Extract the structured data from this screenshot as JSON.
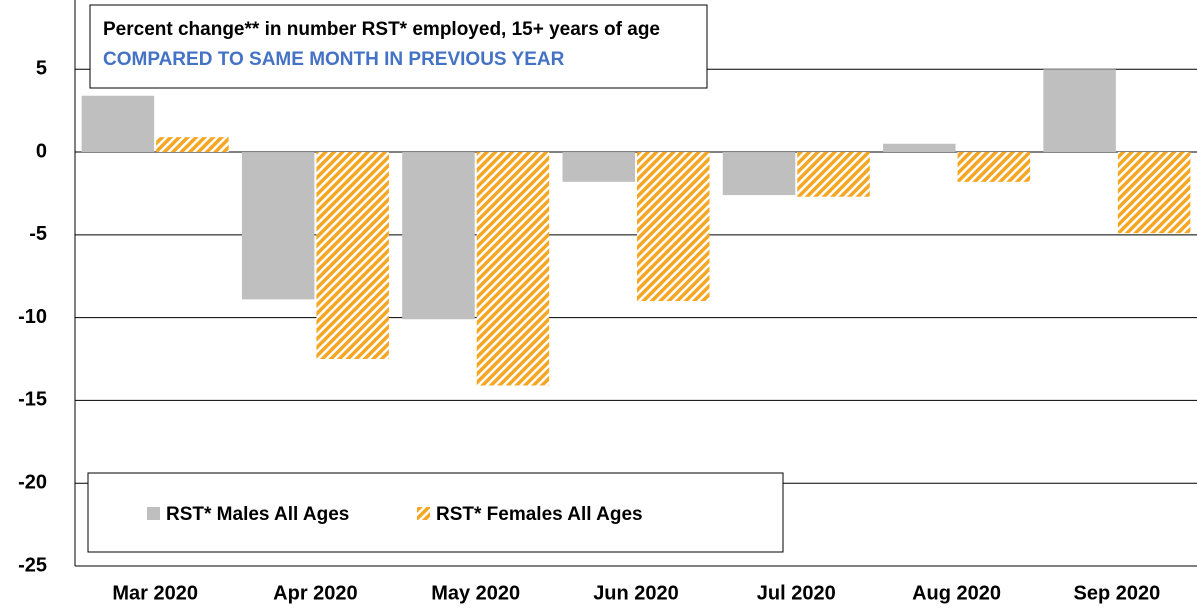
{
  "chart_data": {
    "type": "bar",
    "title": "Percent change** in number RST* employed, 15+ years of age",
    "subtitle": "COMPARED TO SAME MONTH IN PREVIOUS YEAR",
    "categories": [
      "Mar 2020",
      "Apr 2020",
      "May 2020",
      "Jun 2020",
      "Jul 2020",
      "Aug 2020",
      "Sep 2020"
    ],
    "series": [
      {
        "name": "RST* Males All Ages",
        "color": "#bfbfbf",
        "values": [
          3.4,
          -8.9,
          -10.1,
          -1.8,
          -2.6,
          0.5,
          5.0
        ]
      },
      {
        "name": "RST* Females All Ages",
        "color": "#f5a623",
        "hatched": true,
        "values": [
          0.9,
          -12.5,
          -14.1,
          -9.0,
          -2.7,
          -1.8,
          -4.9
        ]
      }
    ],
    "ylim": [
      -25,
      9
    ],
    "yticks": [
      -25,
      -20,
      -15,
      -10,
      -5,
      0,
      5
    ],
    "grid": true,
    "legend": "bottom-left"
  }
}
